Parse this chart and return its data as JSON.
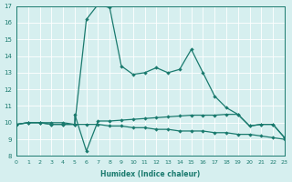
{
  "xlabel": "Humidex (Indice chaleur)",
  "xlim": [
    0,
    23
  ],
  "ylim": [
    8,
    17
  ],
  "yticks": [
    8,
    9,
    10,
    11,
    12,
    13,
    14,
    15,
    16,
    17
  ],
  "xticks": [
    0,
    1,
    2,
    3,
    4,
    5,
    6,
    7,
    8,
    9,
    10,
    11,
    12,
    13,
    14,
    15,
    16,
    17,
    18,
    19,
    20,
    21,
    22,
    23
  ],
  "bg_color": "#d6efef",
  "line_color": "#1a7a6e",
  "series1_x": [
    0,
    1,
    2,
    3,
    4,
    5,
    5,
    6,
    7,
    8,
    9,
    10,
    11,
    12,
    13,
    14,
    15,
    16,
    17,
    18,
    19,
    20,
    21,
    22,
    23
  ],
  "series1_y": [
    9.9,
    10.0,
    10.0,
    10.0,
    10.0,
    9.9,
    10.5,
    8.3,
    10.1,
    10.1,
    10.15,
    10.2,
    10.25,
    10.3,
    10.35,
    10.4,
    10.45,
    10.45,
    10.45,
    10.5,
    10.5,
    9.8,
    9.9,
    9.9,
    9.1
  ],
  "series2_x": [
    0,
    1,
    2,
    3,
    4,
    5,
    6,
    7,
    8,
    9,
    10,
    11,
    12,
    13,
    14,
    15,
    16,
    17,
    18,
    19,
    20,
    21,
    22,
    23
  ],
  "series2_y": [
    9.9,
    10.0,
    10.0,
    9.9,
    9.9,
    9.9,
    9.9,
    9.9,
    9.8,
    9.8,
    9.7,
    9.7,
    9.6,
    9.6,
    9.5,
    9.5,
    9.5,
    9.4,
    9.4,
    9.3,
    9.3,
    9.2,
    9.1,
    9.0
  ],
  "series3_x": [
    0,
    1,
    2,
    3,
    4,
    5,
    6,
    7,
    8,
    9,
    10,
    11,
    12,
    13,
    14,
    15,
    16,
    17,
    18,
    19,
    20,
    21,
    22,
    23
  ],
  "series3_y": [
    9.9,
    10.0,
    10.0,
    9.9,
    9.9,
    9.9,
    16.2,
    17.1,
    16.9,
    13.4,
    12.9,
    13.0,
    13.3,
    13.0,
    13.2,
    14.4,
    13.0,
    11.6,
    10.9,
    10.5,
    9.8,
    9.9,
    9.9,
    9.1
  ]
}
